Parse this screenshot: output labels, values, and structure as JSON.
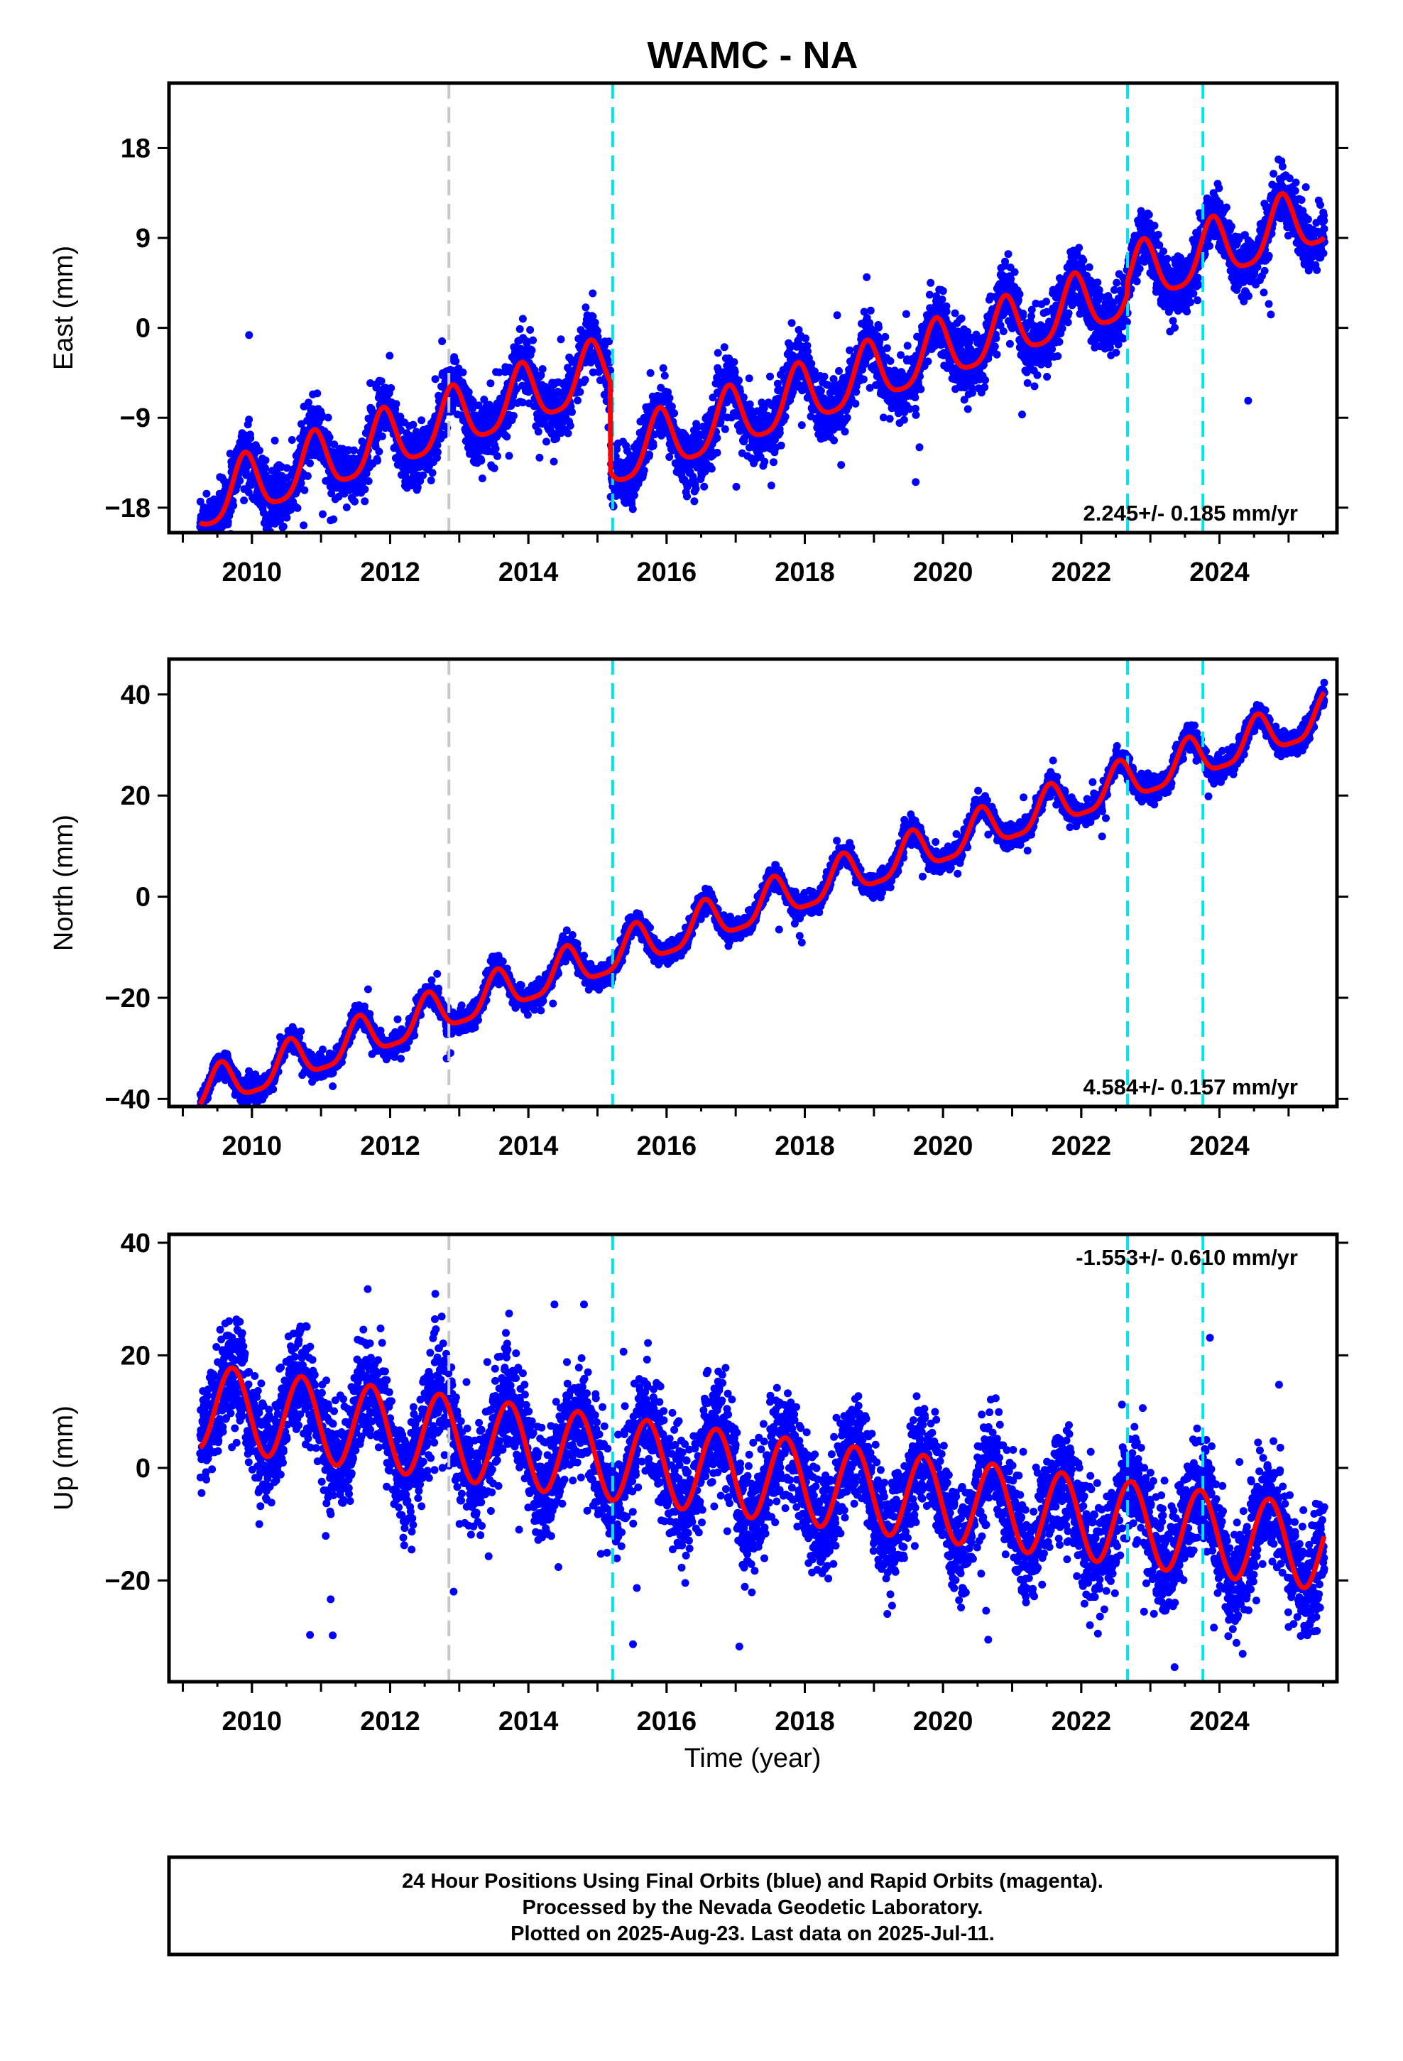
{
  "title": "WAMC - NA",
  "xlabel": "Time (year)",
  "footer": {
    "line1": "24 Hour Positions Using Final Orbits (blue) and Rapid Orbits (magenta).",
    "line2": "Processed by the Nevada Geodetic Laboratory.",
    "line3": "Plotted on 2025-Aug-23. Last data on 2025-Jul-11."
  },
  "colors": {
    "data": "#0000ff",
    "model": "#ff0000",
    "antenna_change": "#00e5ee",
    "equipment_change": "#c8c8c8"
  },
  "chart_data": [
    {
      "type": "scatter",
      "component": "east",
      "ylabel": "East (mm)",
      "xlim": [
        2008.8,
        2025.7
      ],
      "ylim": [
        -20.5,
        24.5
      ],
      "yticks": [
        -18,
        -9,
        0,
        9,
        18
      ],
      "xticks": [
        2010,
        2012,
        2014,
        2016,
        2018,
        2020,
        2022,
        2024
      ],
      "rate_label": "2.245+/- 0.185 mm/yr",
      "rate_position": "bottom-right",
      "model": {
        "start": 2009.25,
        "end": 2025.52,
        "offset_at_start": -17.5,
        "rate_mm_per_yr": 2.245,
        "annual_amplitude": 3.0,
        "semiannual_amplitude": 0.6,
        "annual_peak_phase": 0.9,
        "steps": [
          {
            "epoch": 2015.19,
            "size": -9.0
          },
          {
            "epoch": 2022.67,
            "size": 1.2
          }
        ],
        "scatter_sigma": 1.5
      }
    },
    {
      "type": "scatter",
      "component": "north",
      "ylabel": "North (mm)",
      "xlim": [
        2008.8,
        2025.7
      ],
      "ylim": [
        -41.5,
        47
      ],
      "yticks": [
        -40,
        -20,
        0,
        20,
        40
      ],
      "xticks": [
        2010,
        2012,
        2014,
        2016,
        2018,
        2020,
        2022,
        2024
      ],
      "rate_label": "4.584+/- 0.157 mm/yr",
      "rate_position": "bottom-right",
      "model": {
        "start": 2009.25,
        "end": 2025.52,
        "offset_at_start": -39.0,
        "rate_mm_per_yr": 4.584,
        "annual_amplitude": 4.0,
        "semiannual_amplitude": 1.0,
        "annual_peak_phase": 0.55,
        "steps": [],
        "scatter_sigma": 1.1
      }
    },
    {
      "type": "scatter",
      "component": "up",
      "ylabel": "Up (mm)",
      "xlim": [
        2008.8,
        2025.7
      ],
      "ylim": [
        -38,
        41.5
      ],
      "yticks": [
        -20,
        0,
        20,
        40
      ],
      "xticks": [
        2010,
        2012,
        2014,
        2016,
        2018,
        2020,
        2022,
        2024
      ],
      "rate_label": "-1.553+/- 0.610 mm/yr",
      "rate_position": "top-right",
      "model": {
        "start": 2009.25,
        "end": 2025.52,
        "offset_at_start": 11.0,
        "rate_mm_per_yr": -1.553,
        "annual_amplitude": 7.5,
        "semiannual_amplitude": 0.0,
        "annual_peak_phase": 0.72,
        "steps": [],
        "scatter_sigma": 4.8
      }
    }
  ],
  "events": [
    {
      "epoch": 2012.85,
      "kind": "equipment_change"
    },
    {
      "epoch": 2015.22,
      "kind": "antenna_change"
    },
    {
      "epoch": 2022.67,
      "kind": "antenna_change"
    },
    {
      "epoch": 2023.76,
      "kind": "antenna_change"
    }
  ]
}
